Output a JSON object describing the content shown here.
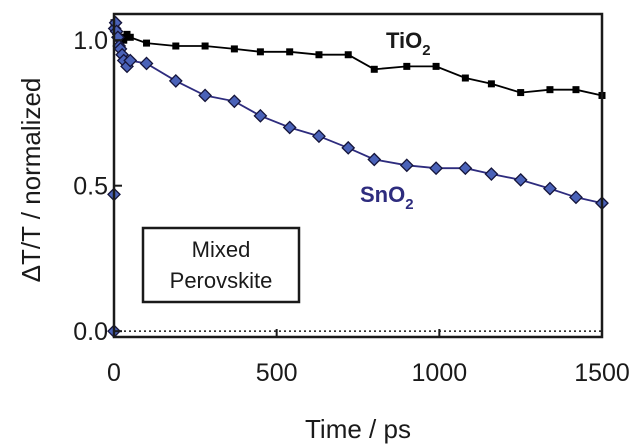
{
  "chart_data": {
    "type": "scatter",
    "xlabel": "Time / ps",
    "ylabel": "ΔT/T / normalized",
    "xlim": [
      0,
      1500
    ],
    "ylim": [
      -0.02,
      1.09
    ],
    "xticks": [
      0,
      500,
      1000,
      1500
    ],
    "yticks": [
      0.0,
      0.5,
      1.0
    ],
    "ytick_labels": [
      "0.0",
      "0.5",
      "1.0"
    ],
    "zero_line": "dotted",
    "annotation_box": {
      "line1": "Mixed",
      "line2": "Perovskite"
    },
    "series": [
      {
        "name": "TiO",
        "name_sub": "2",
        "color": "#000000",
        "marker": "square",
        "x": [
          0,
          5,
          10,
          15,
          20,
          25,
          30,
          40,
          50,
          100,
          190,
          280,
          370,
          450,
          540,
          630,
          720,
          800,
          900,
          990,
          1080,
          1160,
          1250,
          1340,
          1420,
          1500
        ],
        "y": [
          1.06,
          1.03,
          1.02,
          1.01,
          1.0,
          1.01,
          1.0,
          1.02,
          1.01,
          0.99,
          0.98,
          0.98,
          0.97,
          0.96,
          0.96,
          0.95,
          0.95,
          0.9,
          0.91,
          0.91,
          0.87,
          0.85,
          0.82,
          0.83,
          0.83,
          0.81
        ]
      },
      {
        "name": "SnO",
        "name_sub": "2",
        "color": "#2e2c7e",
        "marker": "diamond",
        "x": [
          0,
          0,
          2,
          5,
          8,
          12,
          16,
          20,
          25,
          30,
          40,
          50,
          100,
          190,
          280,
          370,
          450,
          540,
          630,
          720,
          800,
          900,
          990,
          1080,
          1160,
          1250,
          1340,
          1420,
          1500
        ],
        "y": [
          0.0,
          0.47,
          1.04,
          1.06,
          1.03,
          1.01,
          0.98,
          0.97,
          0.95,
          0.93,
          0.91,
          0.93,
          0.92,
          0.86,
          0.81,
          0.79,
          0.74,
          0.7,
          0.67,
          0.63,
          0.59,
          0.57,
          0.56,
          0.56,
          0.54,
          0.52,
          0.49,
          0.46,
          0.44
        ]
      }
    ]
  }
}
